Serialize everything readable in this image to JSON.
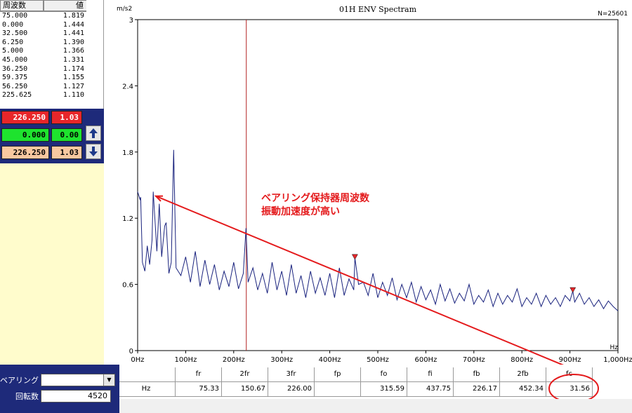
{
  "peak_table": {
    "headers": [
      "周波数",
      "値"
    ],
    "rows": [
      [
        "75.000",
        "1.819"
      ],
      [
        "0.000",
        "1.444"
      ],
      [
        "32.500",
        "1.441"
      ],
      [
        "6.250",
        "1.390"
      ],
      [
        "5.000",
        "1.366"
      ],
      [
        "45.000",
        "1.331"
      ],
      [
        "36.250",
        "1.174"
      ],
      [
        "59.375",
        "1.155"
      ],
      [
        "56.250",
        "1.127"
      ],
      [
        "225.625",
        "1.110"
      ]
    ]
  },
  "cursors": {
    "red": {
      "freq": "226.250",
      "value": "1.03",
      "color": "#e8262a"
    },
    "green": {
      "freq": "0.000",
      "value": "0.00",
      "color": "#1ee32e"
    },
    "tan": {
      "freq": "226.250",
      "value": "1.03",
      "color": "#f8c8a0"
    }
  },
  "buttons": {
    "up_icon": "arrow-up-icon",
    "down_icon": "arrow-down-icon"
  },
  "bearing_panel": {
    "bearing_label": "ベアリング",
    "bearing_value": "",
    "rpm_label": "回転数",
    "rpm_value": "4520"
  },
  "bearing_table": {
    "headers": [
      "",
      "fr",
      "2fr",
      "3fr",
      "fp",
      "fo",
      "fi",
      "fb",
      "2fb",
      "fc"
    ],
    "row": [
      "Hz",
      "75.33",
      "150.67",
      "226.00",
      "",
      "315.59",
      "437.75",
      "226.17",
      "452.34",
      "31.56"
    ],
    "highlight": "fc"
  },
  "annotation": {
    "line1": "ベアリング保持器周波数",
    "line2": "振動加速度が高い",
    "color": "#e41a1c"
  },
  "chart_data": {
    "type": "line",
    "title": "01H ENV Spectram",
    "top_right_label": "N=25601",
    "ylabel": "m/s2",
    "xlabel": "Hz",
    "xlim": [
      0,
      1000
    ],
    "ylim": [
      0,
      3
    ],
    "x_ticks": [
      0,
      100,
      200,
      300,
      400,
      500,
      600,
      700,
      800,
      900,
      1000
    ],
    "x_tick_labels": [
      "0Hz",
      "100Hz",
      "200Hz",
      "300Hz",
      "400Hz",
      "500Hz",
      "600Hz",
      "700Hz",
      "800Hz",
      "900Hz",
      "1,000Hz"
    ],
    "y_ticks": [
      0,
      0.6,
      1.2,
      1.8,
      2.4,
      3
    ],
    "y_tick_labels": [
      "0",
      "0.6",
      "1.2",
      "1.8",
      "2.4",
      "3"
    ],
    "grid": true,
    "line_color": "#1a237e",
    "cursor_line_x": 226.25,
    "cursor_line_color": "#b22222",
    "markers": [
      {
        "x": 452.34,
        "y": 0.84,
        "color": "#e8262a"
      },
      {
        "x": 906,
        "y": 0.54,
        "color": "#e8262a"
      }
    ],
    "series": [
      {
        "x": [
          0,
          5,
          6.25,
          10,
          15,
          20,
          25,
          30,
          32.5,
          36.25,
          40,
          45,
          50,
          56.25,
          59.375,
          65,
          70,
          75,
          80,
          90,
          100,
          110,
          120,
          130,
          140,
          150,
          160,
          170,
          180,
          190,
          200,
          210,
          220,
          225.625,
          230,
          240,
          250,
          260,
          270,
          280,
          290,
          300,
          310,
          320,
          330,
          340,
          350,
          360,
          370,
          380,
          390,
          400,
          410,
          420,
          430,
          440,
          450,
          452.34,
          460,
          470,
          480,
          490,
          500,
          510,
          520,
          530,
          540,
          550,
          560,
          570,
          580,
          590,
          600,
          610,
          620,
          630,
          640,
          650,
          660,
          670,
          680,
          690,
          700,
          710,
          720,
          730,
          740,
          750,
          760,
          770,
          780,
          790,
          800,
          810,
          820,
          830,
          840,
          850,
          860,
          870,
          880,
          890,
          900,
          906,
          910,
          920,
          930,
          940,
          950,
          960,
          970,
          980,
          990,
          1000
        ],
        "values": [
          1.44,
          1.37,
          1.39,
          0.8,
          0.72,
          0.95,
          0.78,
          1.0,
          1.44,
          1.17,
          0.9,
          1.33,
          0.85,
          1.13,
          1.16,
          0.7,
          0.8,
          1.82,
          0.75,
          0.68,
          0.85,
          0.62,
          0.9,
          0.58,
          0.82,
          0.6,
          0.78,
          0.55,
          0.72,
          0.58,
          0.8,
          0.56,
          0.7,
          1.11,
          0.62,
          0.75,
          0.55,
          0.7,
          0.52,
          0.8,
          0.55,
          0.72,
          0.5,
          0.78,
          0.52,
          0.68,
          0.48,
          0.72,
          0.52,
          0.66,
          0.5,
          0.7,
          0.48,
          0.75,
          0.5,
          0.65,
          0.55,
          0.84,
          0.6,
          0.62,
          0.5,
          0.7,
          0.48,
          0.62,
          0.5,
          0.66,
          0.46,
          0.6,
          0.48,
          0.62,
          0.44,
          0.58,
          0.46,
          0.55,
          0.42,
          0.6,
          0.45,
          0.56,
          0.43,
          0.52,
          0.45,
          0.6,
          0.42,
          0.5,
          0.44,
          0.55,
          0.4,
          0.52,
          0.42,
          0.5,
          0.44,
          0.56,
          0.4,
          0.48,
          0.42,
          0.52,
          0.4,
          0.5,
          0.42,
          0.48,
          0.4,
          0.5,
          0.45,
          0.54,
          0.44,
          0.52,
          0.42,
          0.48,
          0.4,
          0.46,
          0.38,
          0.45,
          0.4,
          0.36
        ]
      }
    ]
  }
}
